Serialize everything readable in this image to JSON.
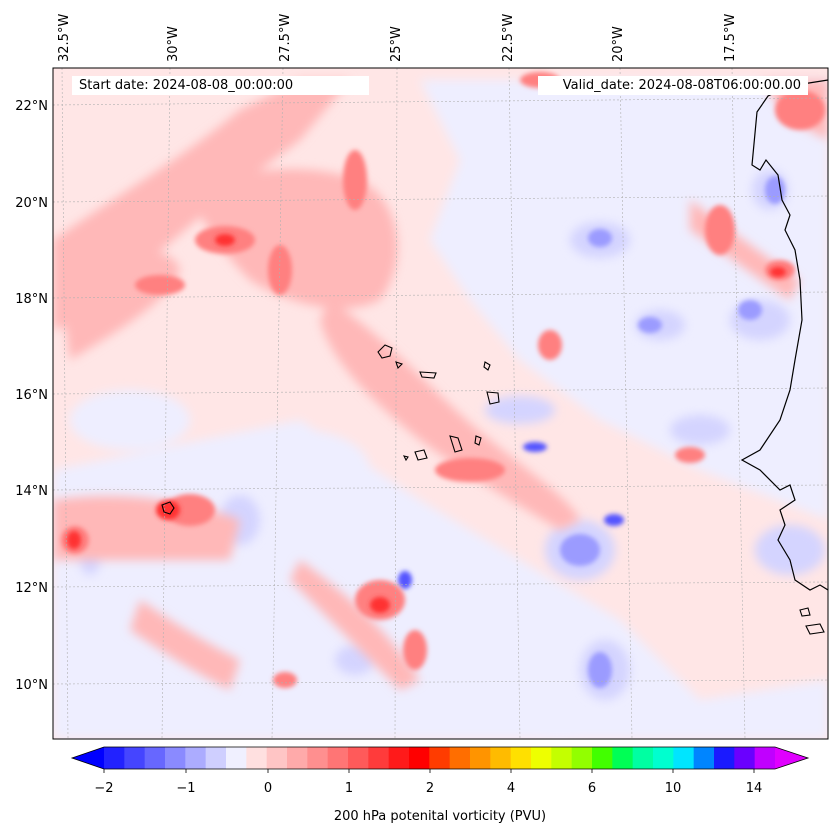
{
  "map": {
    "start_date": "Start date: 2024-08-08_00:00:00",
    "valid_date": "Valid_date: 2024-08-08T06:00:00.00",
    "lon_labels": [
      "32.5°W",
      "30°W",
      "27.5°W",
      "25°W",
      "22.5°W",
      "20°W",
      "17.5°W"
    ],
    "lat_labels": [
      "22°N",
      "20°N",
      "18°N",
      "16°N",
      "14°N",
      "12°N",
      "10°N"
    ],
    "field": "200 hPa potential vorticity anomaly field, red positive / blue negative"
  },
  "colorbar": {
    "title": "200 hPa potenital vorticity (PVU)",
    "tick_labels": [
      "−2",
      "−1",
      "0",
      "1",
      "2",
      "4",
      "6",
      "10",
      "14"
    ],
    "colors": [
      "#0000ff",
      "#2222ff",
      "#4545ff",
      "#6767ff",
      "#8a8aff",
      "#acacff",
      "#cfcfff",
      "#f0f0ff",
      "#ffe0e0",
      "#ffc5c5",
      "#ffaaaa",
      "#ff8f8f",
      "#ff7575",
      "#ff5a5a",
      "#ff3b3b",
      "#ff1a1a",
      "#ff0000",
      "#ff3c00",
      "#ff6e00",
      "#ff9400",
      "#ffbb00",
      "#ffe000",
      "#eeff00",
      "#c4ff00",
      "#92ff00",
      "#42ff00",
      "#00ff55",
      "#00ffa2",
      "#00ffcf",
      "#00e5ff",
      "#0085ff",
      "#1a1aff",
      "#6a00ff",
      "#c000ff",
      "#e000ff"
    ]
  }
}
